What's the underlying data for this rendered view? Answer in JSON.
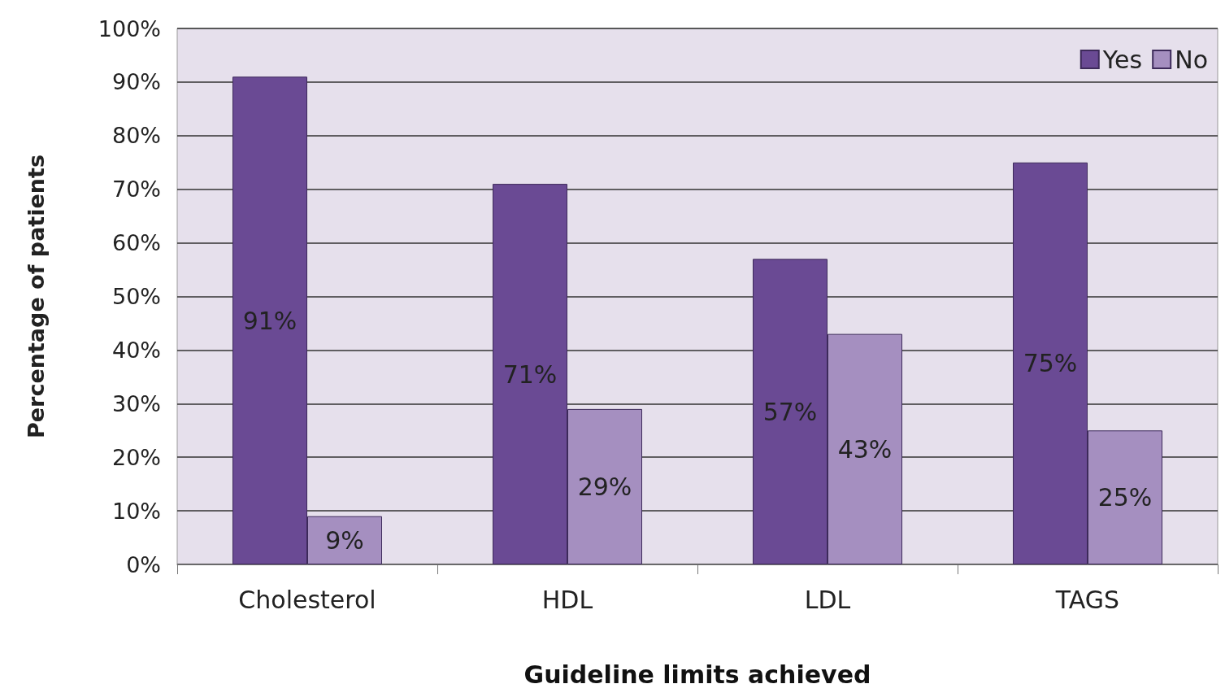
{
  "chart_data": {
    "type": "bar",
    "xlabel": "Guideline limits achieved",
    "ylabel": "Percentage of patients",
    "categories": [
      "Cholesterol",
      "HDL",
      "LDL",
      "TAGS"
    ],
    "series": [
      {
        "name": "Yes",
        "color": "#6a4a94",
        "values": [
          91,
          71,
          57,
          75
        ],
        "value_labels": [
          "91%",
          "71%",
          "57%",
          "75%"
        ]
      },
      {
        "name": "No",
        "color": "#a58fc0",
        "values": [
          9,
          29,
          43,
          25
        ],
        "value_labels": [
          "9%",
          "29%",
          "43%",
          "25%"
        ]
      }
    ],
    "ylim": [
      0,
      100
    ],
    "yticks": [
      {
        "value": 0,
        "label": "0%"
      },
      {
        "value": 10,
        "label": "10%"
      },
      {
        "value": 20,
        "label": "20%"
      },
      {
        "value": 30,
        "label": "30%"
      },
      {
        "value": 40,
        "label": "40%"
      },
      {
        "value": 50,
        "label": "50%"
      },
      {
        "value": 60,
        "label": "60%"
      },
      {
        "value": 70,
        "label": "70%"
      },
      {
        "value": 80,
        "label": "80%"
      },
      {
        "value": 90,
        "label": "90%"
      },
      {
        "value": 100,
        "label": "100%"
      }
    ],
    "grid": "y",
    "legend": "top right"
  }
}
